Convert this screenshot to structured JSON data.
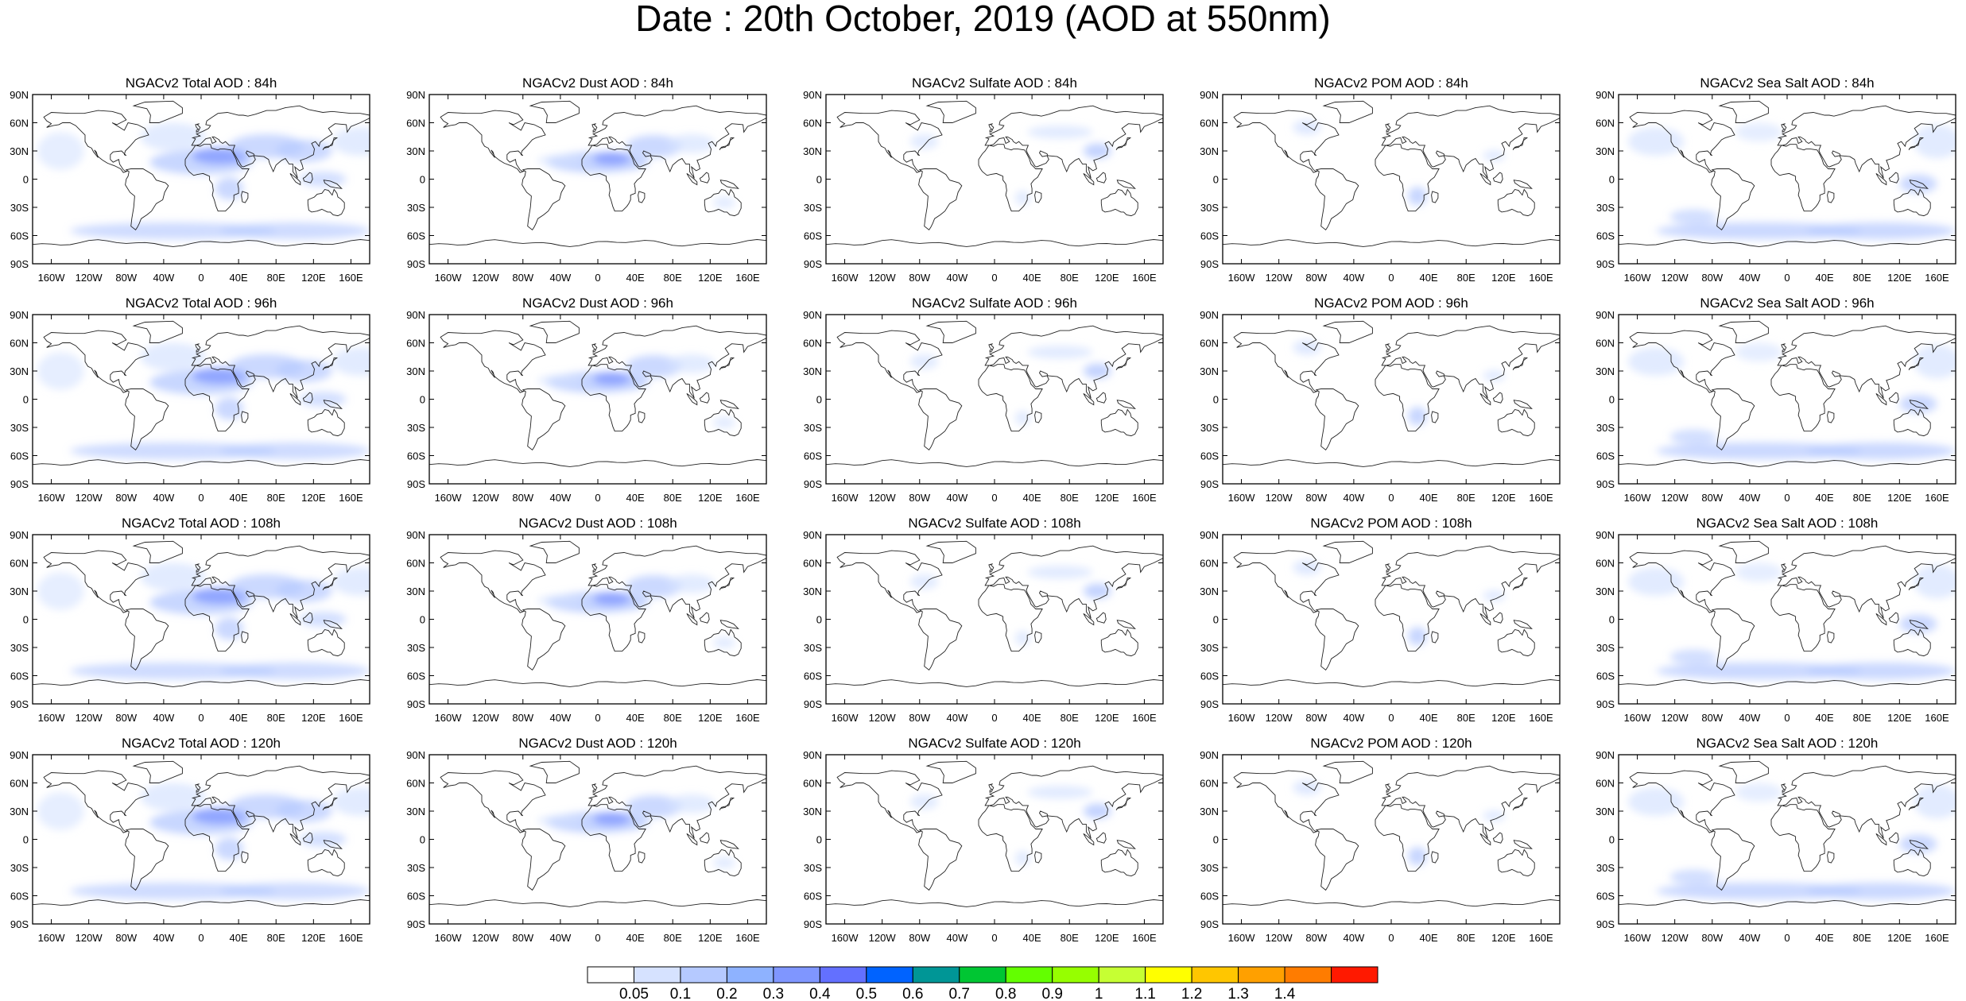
{
  "title": "Date : 20th October, 2019 (AOD at 550nm)",
  "lat_labels": [
    "90N",
    "60N",
    "30N",
    "0",
    "30S",
    "60S",
    "90S"
  ],
  "lon_labels": [
    "160W",
    "120W",
    "80W",
    "40W",
    "0",
    "40E",
    "80E",
    "120E",
    "160E"
  ],
  "species": [
    {
      "key": "total",
      "name": "Total"
    },
    {
      "key": "dust",
      "name": "Dust"
    },
    {
      "key": "sulfate",
      "name": "Sulfate"
    },
    {
      "key": "pom",
      "name": "POM"
    },
    {
      "key": "seasalt",
      "name": "Sea Salt"
    }
  ],
  "panels": [
    [
      "NGACv2 Total AOD : 84h",
      "NGACv2 Dust AOD : 84h",
      "NGACv2 Sulfate AOD : 84h",
      "NGACv2 POM AOD : 84h",
      "NGACv2 Sea Salt AOD : 84h"
    ],
    [
      "NGACv2 Total AOD : 96h",
      "NGACv2 Dust AOD : 96h",
      "NGACv2 Sulfate AOD : 96h",
      "NGACv2 POM AOD : 96h",
      "NGACv2 Sea Salt AOD : 96h"
    ],
    [
      "NGACv2 Total AOD : 108h",
      "NGACv2 Dust AOD : 108h",
      "NGACv2 Sulfate AOD : 108h",
      "NGACv2 POM AOD : 108h",
      "NGACv2 Sea Salt AOD : 108h"
    ],
    [
      "NGACv2 Total AOD : 120h",
      "NGACv2 Dust AOD : 120h",
      "NGACv2 Sulfate AOD : 120h",
      "NGACv2 POM AOD : 120h",
      "NGACv2 Sea Salt  AOD : 120h"
    ]
  ],
  "colorbar": {
    "labels": [
      "0.05",
      "0.1",
      "0.2",
      "0.3",
      "0.4",
      "0.5",
      "0.6",
      "0.7",
      "0.8",
      "0.9",
      "1",
      "1.1",
      "1.2",
      "1.3",
      "1.4"
    ],
    "colors": [
      "#ffffff",
      "#d6e2ff",
      "#b5c9ff",
      "#8eb2ff",
      "#7f96ff",
      "#6370ff",
      "#0063ff",
      "#009696",
      "#00c633",
      "#63ff00",
      "#96ff00",
      "#c6ff33",
      "#ffff00",
      "#ffc600",
      "#ffa000",
      "#ff7c00",
      "#ff1900"
    ]
  }
}
